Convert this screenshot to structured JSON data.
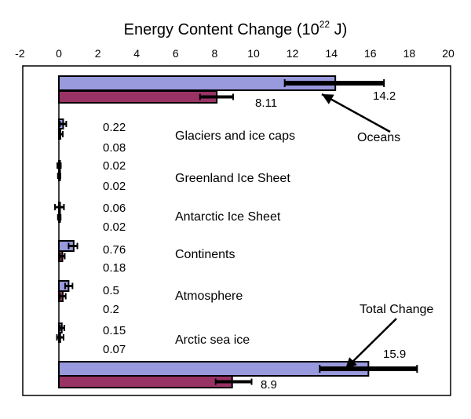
{
  "chart_data": {
    "type": "bar",
    "orientation": "horizontal",
    "title": "Energy Content Change (10²² J)",
    "title_main": "Energy Content Change (10",
    "title_sup": "22",
    "title_end": " J)",
    "xlim": [
      -2,
      20
    ],
    "xticks": [
      "-2",
      "0",
      "2",
      "4",
      "6",
      "8",
      "10",
      "12",
      "14",
      "16",
      "18",
      "20"
    ],
    "grid": false,
    "categories": [
      "Oceans",
      "Glaciers and ice caps",
      "Greenland Ice Sheet",
      "Antarctic Ice Sheet",
      "Continents",
      "Atmosphere",
      "Arctic sea ice",
      "Total Change"
    ],
    "series": [
      {
        "color": "#9999dd",
        "values": [
          14.2,
          0.22,
          0.02,
          0.06,
          0.76,
          0.5,
          0.15,
          15.9
        ],
        "error_ranges": [
          [
            11.6,
            16.7
          ],
          [
            0.05,
            0.38
          ],
          [
            -0.08,
            0.1
          ],
          [
            -0.2,
            0.26
          ],
          [
            0.5,
            0.95
          ],
          [
            0.32,
            0.7
          ],
          [
            0.05,
            0.28
          ],
          [
            13.4,
            18.4
          ]
        ]
      },
      {
        "color": "#993366",
        "values": [
          8.11,
          0.08,
          0.02,
          0.02,
          0.18,
          0.2,
          0.07,
          8.9
        ],
        "error_ranges": [
          [
            7.25,
            8.95
          ],
          [
            0.0,
            0.2
          ],
          [
            -0.05,
            0.08
          ],
          [
            -0.05,
            0.09
          ],
          [
            0.05,
            0.3
          ],
          [
            0.05,
            0.35
          ],
          [
            -0.1,
            0.24
          ],
          [
            8.05,
            9.9
          ]
        ]
      }
    ],
    "value_labels": {
      "top": [
        "14.2",
        "0.22",
        "0.02",
        "0.06",
        "0.76",
        "0.5",
        "0.15",
        "15.9"
      ],
      "bottom": [
        "8.11",
        "0.08",
        "0.02",
        "0.02",
        "0.18",
        "0.2",
        "0.07",
        "8.9"
      ]
    },
    "annotations": {
      "oceans": "Oceans",
      "total": "Total Change"
    }
  }
}
